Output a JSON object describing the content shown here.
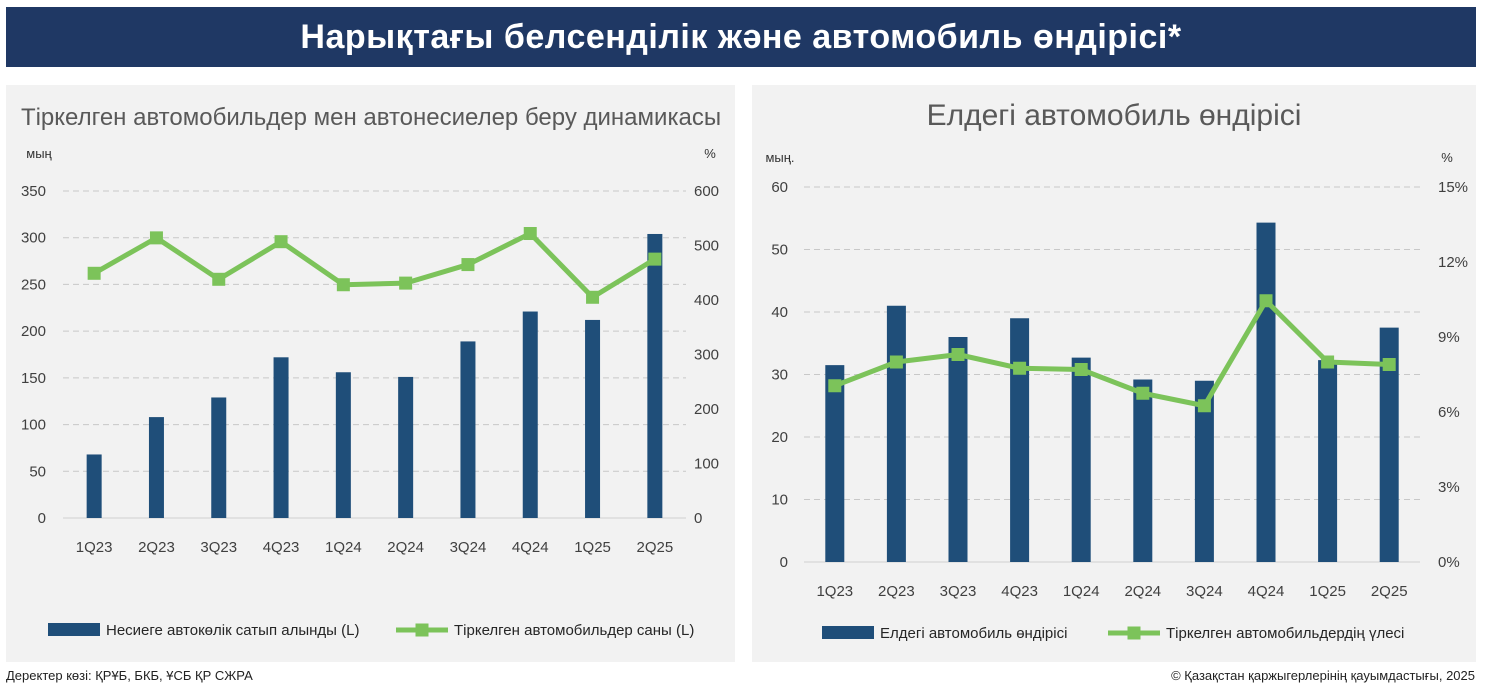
{
  "header": {
    "title": "Нарықтағы белсенділік және автомобиль өндірісі*"
  },
  "footer": {
    "source": "Деректер көзі: ҚРҰБ, БКБ, ҰСБ ҚР СЖРА",
    "copyright": "© Қазақстан қаржыгерлерінің қауымдастығы, 2025"
  },
  "colors": {
    "bar": "#1f4e79",
    "line": "#7cc35a",
    "banner": "#1f3864",
    "panel": "#f2f2f2"
  },
  "chart_data": [
    {
      "type": "bar",
      "title": "Тіркелген автомобильдер мен автонесиелер беру динамикасы",
      "y_left_unit": "мың",
      "y_right_unit": "%",
      "categories": [
        "1Q23",
        "2Q23",
        "3Q23",
        "4Q23",
        "1Q24",
        "2Q24",
        "3Q24",
        "4Q24",
        "1Q25",
        "2Q25"
      ],
      "y_left_ticks": [
        "0",
        "50",
        "100",
        "150",
        "200",
        "250",
        "300",
        "350"
      ],
      "y_right_ticks": [
        "0",
        "100",
        "200",
        "300",
        "400",
        "500",
        "600"
      ],
      "ylim_left": [
        0,
        350
      ],
      "ylim_right": [
        0,
        600
      ],
      "grid": true,
      "legend_position": "bottom",
      "series": [
        {
          "name": "Несиеге автокөлік сатып алынды (L)",
          "kind": "bar",
          "axis": "left",
          "values": [
            68,
            108,
            129,
            172,
            156,
            151,
            189,
            221,
            212,
            304
          ]
        },
        {
          "name": "Тіркелген автомобильдер саны (L)",
          "kind": "line",
          "axis": "right",
          "values": [
            449,
            514,
            438,
            507,
            428,
            431,
            465,
            522,
            405,
            475
          ]
        }
      ]
    },
    {
      "type": "bar",
      "title": "Елдегі автомобиль өндірісі",
      "y_left_unit": "мың.",
      "y_right_unit": "%",
      "categories": [
        "1Q23",
        "2Q23",
        "3Q23",
        "4Q23",
        "1Q24",
        "2Q24",
        "3Q24",
        "4Q24",
        "1Q25",
        "2Q25"
      ],
      "y_left_ticks": [
        "0",
        "10",
        "20",
        "30",
        "40",
        "50",
        "60"
      ],
      "y_right_ticks": [
        "0%",
        "3%",
        "6%",
        "9%",
        "12%",
        "15%"
      ],
      "ylim_left": [
        0,
        60
      ],
      "ylim_right": [
        0,
        15
      ],
      "grid": true,
      "legend_position": "bottom",
      "series": [
        {
          "name": "Елдегі автомобиль өндірісі",
          "kind": "bar",
          "axis": "left",
          "values": [
            31.5,
            41,
            36,
            39,
            32.7,
            29.2,
            29,
            54.3,
            32.3,
            37.5
          ]
        },
        {
          "name": "Тіркелген автомобильдердің үлесі",
          "kind": "line",
          "axis": "right",
          "values": [
            7.05,
            8.0,
            8.3,
            7.75,
            7.7,
            6.75,
            6.25,
            10.45,
            8.0,
            7.9
          ]
        }
      ]
    }
  ]
}
